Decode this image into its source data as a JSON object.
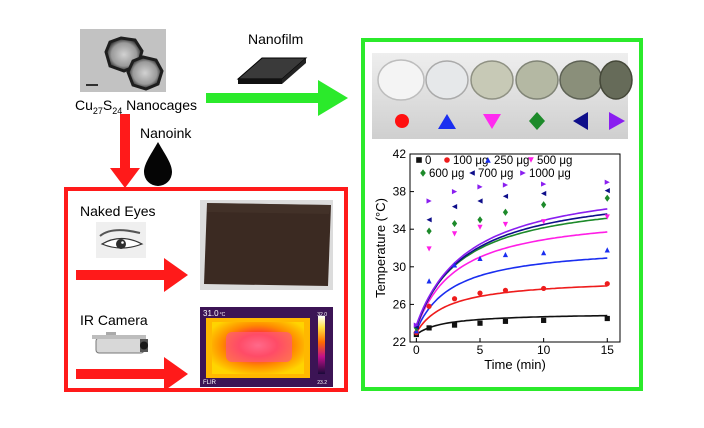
{
  "source": {
    "formula_main": "Cu",
    "formula_sub1": "27",
    "formula_mid": "S",
    "formula_sub2": "24",
    "formula_tail": " Nanocages"
  },
  "arrow_labels": {
    "nanofilm": "Nanofilm",
    "nanoink": "Nanoink"
  },
  "red_panel": {
    "naked_eyes": "Naked Eyes",
    "ir_camera": "IR Camera",
    "thermal": {
      "reading": "31.0",
      "unit": "°C",
      "scale_max": "32.0",
      "scale_min": "23.2",
      "brand": "FLIR"
    }
  },
  "colors": {
    "red": "#ff1a1a",
    "green": "#2bea2b",
    "film_dark": "#3b2a22"
  },
  "film_markers": [
    "red-circle",
    "blue-up-triangle",
    "magenta-down-triangle",
    "green-diamond",
    "navy-left-triangle",
    "purple-right-triangle"
  ],
  "chart_data": {
    "type": "scatter",
    "xlabel": "Time (min)",
    "ylabel": "Temperature (°C)",
    "xlim": [
      -0.5,
      16
    ],
    "ylim": [
      22,
      42
    ],
    "xticks": [
      0,
      5,
      10,
      15
    ],
    "xtick_labels": [
      "0",
      "5",
      "10",
      "15"
    ],
    "yticks": [
      22,
      26,
      30,
      34,
      38,
      42
    ],
    "ytick_labels": [
      "22",
      "26",
      "30",
      "34",
      "38",
      "42"
    ],
    "series": [
      {
        "name": "0",
        "color": "#111111",
        "marker": "square",
        "x": [
          0,
          1,
          3,
          5,
          7,
          10,
          15
        ],
        "y": [
          22.8,
          23.5,
          23.8,
          24.0,
          24.2,
          24.3,
          24.5
        ]
      },
      {
        "name": "100 μg",
        "color": "#ee1c1c",
        "marker": "circle",
        "x": [
          0,
          1,
          3,
          5,
          7,
          10,
          15
        ],
        "y": [
          23.0,
          25.8,
          26.6,
          27.2,
          27.5,
          27.7,
          28.2
        ]
      },
      {
        "name": "250 μg",
        "color": "#1a2ef0",
        "marker": "triangle-up",
        "x": [
          0,
          1,
          3,
          5,
          7,
          10,
          15
        ],
        "y": [
          23.2,
          28.5,
          30.2,
          30.9,
          31.3,
          31.5,
          31.8
        ]
      },
      {
        "name": "500 μg",
        "color": "#ff1ee6",
        "marker": "triangle-down",
        "x": [
          0,
          1,
          3,
          5,
          7,
          10,
          15
        ],
        "y": [
          23.4,
          31.9,
          33.5,
          34.2,
          34.5,
          34.8,
          35.3
        ]
      },
      {
        "name": "600 μg",
        "color": "#1d8a2a",
        "marker": "diamond",
        "x": [
          0,
          1,
          3,
          5,
          7,
          10,
          15
        ],
        "y": [
          23.5,
          33.8,
          34.6,
          35.0,
          35.8,
          36.6,
          37.3
        ]
      },
      {
        "name": "700 μg",
        "color": "#0e0e8a",
        "marker": "triangle-left",
        "x": [
          0,
          1,
          3,
          5,
          7,
          10,
          15
        ],
        "y": [
          23.6,
          35.0,
          36.4,
          37.0,
          37.5,
          37.8,
          38.1
        ]
      },
      {
        "name": "1000 μg",
        "color": "#8a1ef0",
        "marker": "triangle-right",
        "x": [
          0,
          1,
          3,
          5,
          7,
          10,
          15
        ],
        "y": [
          23.8,
          37.0,
          38.0,
          38.5,
          38.7,
          38.8,
          39.0
        ]
      }
    ]
  }
}
